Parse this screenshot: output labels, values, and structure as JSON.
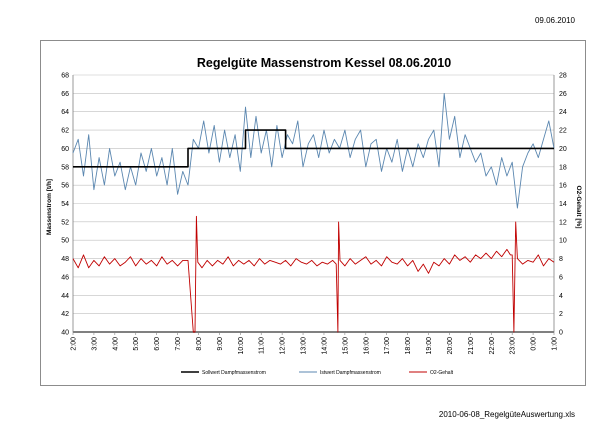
{
  "page": {
    "date": "09.06.2010",
    "file_name": "2010-06-08_RegelgüteAuswertung.xls"
  },
  "chart_data": {
    "type": "line",
    "title": "Regelgüte Massenstrom Kessel 08.06.2010",
    "ylabel": "Massenstrom [t/h]",
    "y2label": "O2-Gehalt [%]",
    "ylim": [
      40,
      68
    ],
    "y2lim": [
      0,
      28
    ],
    "yticks": [
      "40",
      "42",
      "44",
      "46",
      "48",
      "50",
      "52",
      "54",
      "56",
      "58",
      "60",
      "62",
      "64",
      "66",
      "68"
    ],
    "y2ticks": [
      "0",
      "2",
      "4",
      "6",
      "8",
      "10",
      "12",
      "14",
      "16",
      "18",
      "20",
      "22",
      "24",
      "26",
      "28"
    ],
    "xlim": [
      0,
      1380
    ],
    "x_tick_labels": [
      "2:00",
      "3:00",
      "4:00",
      "5:00",
      "6:00",
      "7:00",
      "8:00",
      "9:00",
      "10:00",
      "11:00",
      "12:00",
      "13:00",
      "14:00",
      "15:00",
      "16:00",
      "17:00",
      "18:00",
      "19:00",
      "20:00",
      "21:00",
      "22:00",
      "23:00",
      "0:00",
      "1:00"
    ],
    "x_unit": "minutes after 2:00",
    "grid": true,
    "legend_position": "bottom",
    "series": [
      {
        "name": "Sollwert Dampfmassenstrom",
        "axis": "left",
        "color": "#000000",
        "style": "step",
        "points": [
          [
            0,
            58
          ],
          [
            330,
            58
          ],
          [
            330,
            60
          ],
          [
            495,
            60
          ],
          [
            495,
            62
          ],
          [
            610,
            62
          ],
          [
            610,
            60
          ],
          [
            1380,
            60
          ]
        ]
      },
      {
        "name": "Istwert Dampfmassenstrom",
        "axis": "left",
        "color": "#5b87b0",
        "points": [
          [
            0,
            59.5
          ],
          [
            15,
            61
          ],
          [
            30,
            57
          ],
          [
            45,
            61.5
          ],
          [
            60,
            55.5
          ],
          [
            75,
            59
          ],
          [
            90,
            56
          ],
          [
            105,
            60
          ],
          [
            120,
            57
          ],
          [
            135,
            58.5
          ],
          [
            150,
            55.5
          ],
          [
            165,
            58
          ],
          [
            180,
            56
          ],
          [
            195,
            59.5
          ],
          [
            210,
            57.5
          ],
          [
            225,
            60
          ],
          [
            240,
            57
          ],
          [
            255,
            59
          ],
          [
            270,
            56
          ],
          [
            285,
            60
          ],
          [
            300,
            55
          ],
          [
            315,
            57.5
          ],
          [
            330,
            56
          ],
          [
            345,
            61
          ],
          [
            360,
            60
          ],
          [
            375,
            63
          ],
          [
            390,
            59.5
          ],
          [
            405,
            62.5
          ],
          [
            420,
            58.5
          ],
          [
            435,
            62
          ],
          [
            450,
            59
          ],
          [
            465,
            61.5
          ],
          [
            480,
            57.5
          ],
          [
            495,
            64.5
          ],
          [
            510,
            59
          ],
          [
            525,
            63.5
          ],
          [
            540,
            59.5
          ],
          [
            555,
            62
          ],
          [
            570,
            58
          ],
          [
            585,
            62.5
          ],
          [
            600,
            59
          ],
          [
            615,
            61.5
          ],
          [
            630,
            60.5
          ],
          [
            645,
            63
          ],
          [
            660,
            58
          ],
          [
            675,
            60.5
          ],
          [
            690,
            61.5
          ],
          [
            705,
            59
          ],
          [
            720,
            62
          ],
          [
            735,
            59.5
          ],
          [
            750,
            61
          ],
          [
            765,
            60
          ],
          [
            780,
            62
          ],
          [
            795,
            59
          ],
          [
            810,
            61
          ],
          [
            825,
            62
          ],
          [
            840,
            58
          ],
          [
            855,
            60.5
          ],
          [
            870,
            61
          ],
          [
            885,
            57.5
          ],
          [
            900,
            60
          ],
          [
            915,
            58.5
          ],
          [
            930,
            61
          ],
          [
            945,
            57.5
          ],
          [
            960,
            60
          ],
          [
            975,
            58
          ],
          [
            990,
            60.5
          ],
          [
            1005,
            59
          ],
          [
            1020,
            61
          ],
          [
            1035,
            62
          ],
          [
            1050,
            58
          ],
          [
            1065,
            66
          ],
          [
            1080,
            61
          ],
          [
            1095,
            63.5
          ],
          [
            1110,
            59
          ],
          [
            1125,
            61.5
          ],
          [
            1140,
            60
          ],
          [
            1155,
            58.5
          ],
          [
            1170,
            59.5
          ],
          [
            1185,
            57
          ],
          [
            1200,
            58
          ],
          [
            1215,
            56
          ],
          [
            1230,
            59
          ],
          [
            1245,
            57
          ],
          [
            1260,
            58.5
          ],
          [
            1275,
            53.5
          ],
          [
            1290,
            58
          ],
          [
            1305,
            59.5
          ],
          [
            1320,
            60.5
          ],
          [
            1335,
            59
          ],
          [
            1350,
            61
          ],
          [
            1365,
            63
          ],
          [
            1380,
            60
          ]
        ]
      },
      {
        "name": "O2-Gehalt",
        "axis": "right",
        "color": "#c00000",
        "points": [
          [
            0,
            8
          ],
          [
            15,
            7
          ],
          [
            30,
            8.4
          ],
          [
            45,
            7
          ],
          [
            60,
            7.8
          ],
          [
            75,
            7.2
          ],
          [
            90,
            8.2
          ],
          [
            105,
            7.4
          ],
          [
            120,
            8
          ],
          [
            135,
            7.2
          ],
          [
            150,
            7.6
          ],
          [
            165,
            8.2
          ],
          [
            180,
            7.2
          ],
          [
            195,
            8
          ],
          [
            210,
            7.4
          ],
          [
            225,
            7.8
          ],
          [
            240,
            7.2
          ],
          [
            255,
            8.2
          ],
          [
            270,
            7.4
          ],
          [
            285,
            7.8
          ],
          [
            300,
            7.2
          ],
          [
            315,
            7.8
          ],
          [
            330,
            7.8
          ],
          [
            345,
            0
          ],
          [
            350,
            0
          ],
          [
            354,
            12.6
          ],
          [
            358,
            7.6
          ],
          [
            370,
            7
          ],
          [
            385,
            7.8
          ],
          [
            400,
            7.2
          ],
          [
            415,
            7.8
          ],
          [
            430,
            7.4
          ],
          [
            445,
            8.2
          ],
          [
            460,
            7.2
          ],
          [
            475,
            7.8
          ],
          [
            490,
            7.4
          ],
          [
            505,
            7.8
          ],
          [
            520,
            7.2
          ],
          [
            535,
            8
          ],
          [
            550,
            7.4
          ],
          [
            565,
            7.8
          ],
          [
            580,
            7.6
          ],
          [
            595,
            7.4
          ],
          [
            610,
            7.8
          ],
          [
            625,
            7.2
          ],
          [
            640,
            8
          ],
          [
            655,
            7.6
          ],
          [
            670,
            7.4
          ],
          [
            685,
            7.8
          ],
          [
            700,
            7.2
          ],
          [
            715,
            7.6
          ],
          [
            730,
            7.4
          ],
          [
            745,
            7.8
          ],
          [
            755,
            7.4
          ],
          [
            760,
            0
          ],
          [
            762,
            12
          ],
          [
            766,
            7.8
          ],
          [
            780,
            7.2
          ],
          [
            795,
            8
          ],
          [
            810,
            7.4
          ],
          [
            825,
            7.8
          ],
          [
            840,
            8.2
          ],
          [
            855,
            7.4
          ],
          [
            870,
            7.8
          ],
          [
            885,
            7.2
          ],
          [
            900,
            8.2
          ],
          [
            915,
            7.6
          ],
          [
            930,
            7.4
          ],
          [
            945,
            8
          ],
          [
            960,
            7.2
          ],
          [
            975,
            7.8
          ],
          [
            990,
            6.6
          ],
          [
            1005,
            7.4
          ],
          [
            1020,
            6.4
          ],
          [
            1035,
            7.6
          ],
          [
            1050,
            7.2
          ],
          [
            1065,
            8
          ],
          [
            1080,
            7.4
          ],
          [
            1095,
            8.4
          ],
          [
            1110,
            7.8
          ],
          [
            1125,
            8.2
          ],
          [
            1140,
            7.6
          ],
          [
            1155,
            8.4
          ],
          [
            1170,
            8
          ],
          [
            1185,
            8.6
          ],
          [
            1200,
            8
          ],
          [
            1215,
            8.8
          ],
          [
            1230,
            8.2
          ],
          [
            1245,
            9
          ],
          [
            1255,
            8.4
          ],
          [
            1260,
            8.4
          ],
          [
            1265,
            0
          ],
          [
            1270,
            12
          ],
          [
            1275,
            8
          ],
          [
            1290,
            7.4
          ],
          [
            1305,
            7.8
          ],
          [
            1320,
            7.6
          ],
          [
            1335,
            8.4
          ],
          [
            1350,
            7.2
          ],
          [
            1365,
            8
          ],
          [
            1380,
            7.6
          ]
        ]
      }
    ]
  }
}
